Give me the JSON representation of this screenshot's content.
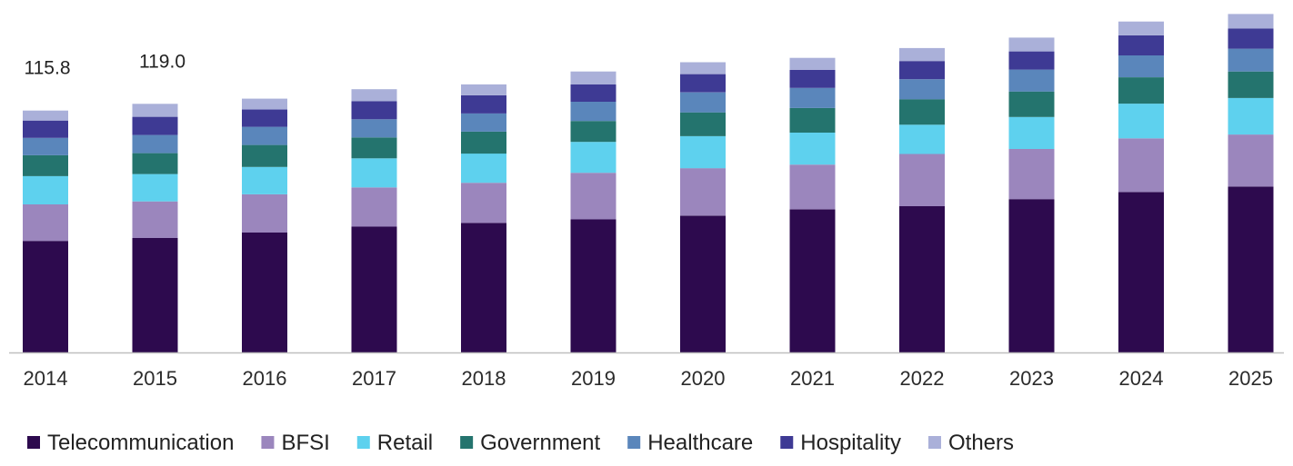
{
  "chart_data": {
    "type": "bar",
    "stacked": true,
    "categories": [
      "2014",
      "2015",
      "2016",
      "2017",
      "2018",
      "2019",
      "2020",
      "2021",
      "2022",
      "2023",
      "2024",
      "2025"
    ],
    "series": [
      {
        "name": "Telecommunication",
        "color": "#2d0a4e",
        "values": [
          53.4,
          54.8,
          57.4,
          60.2,
          62.0,
          63.7,
          65.5,
          68.5,
          70.0,
          73.4,
          76.8,
          79.4
        ]
      },
      {
        "name": "BFSI",
        "color": "#9b86bd",
        "values": [
          17.5,
          17.5,
          18.3,
          18.8,
          19.2,
          22.3,
          22.7,
          21.4,
          25.0,
          24.0,
          25.7,
          24.9
        ]
      },
      {
        "name": "Retail",
        "color": "#5ed1ee",
        "values": [
          13.5,
          13.1,
          13.1,
          13.9,
          14.0,
          14.8,
          15.3,
          15.3,
          14.0,
          15.3,
          16.6,
          17.5
        ]
      },
      {
        "name": "Government",
        "color": "#24746e",
        "values": [
          10.0,
          10.0,
          10.5,
          10.0,
          10.5,
          10.0,
          11.4,
          11.8,
          12.2,
          12.2,
          12.6,
          12.7
        ]
      },
      {
        "name": "Healthcare",
        "color": "#5a86bb",
        "values": [
          8.3,
          8.7,
          8.7,
          8.7,
          8.7,
          9.2,
          9.6,
          9.6,
          9.6,
          10.5,
          10.5,
          10.9
        ]
      },
      {
        "name": "Hospitality",
        "color": "#3e3a94",
        "values": [
          8.3,
          8.7,
          8.3,
          8.7,
          8.7,
          8.3,
          8.7,
          8.7,
          8.7,
          8.7,
          9.6,
          9.6
        ]
      },
      {
        "name": "Others",
        "color": "#aab0d9",
        "values": [
          4.8,
          6.2,
          5.2,
          5.7,
          5.2,
          6.2,
          5.7,
          5.7,
          6.2,
          6.6,
          6.6,
          7.0
        ]
      }
    ],
    "data_labels": [
      {
        "category": "2014",
        "text": "115.8"
      },
      {
        "category": "2015",
        "text": "119.0"
      }
    ],
    "ylim": [
      0,
      170
    ],
    "title": "",
    "xlabel": "",
    "ylabel": "",
    "grid": false,
    "legend_position": "bottom"
  }
}
